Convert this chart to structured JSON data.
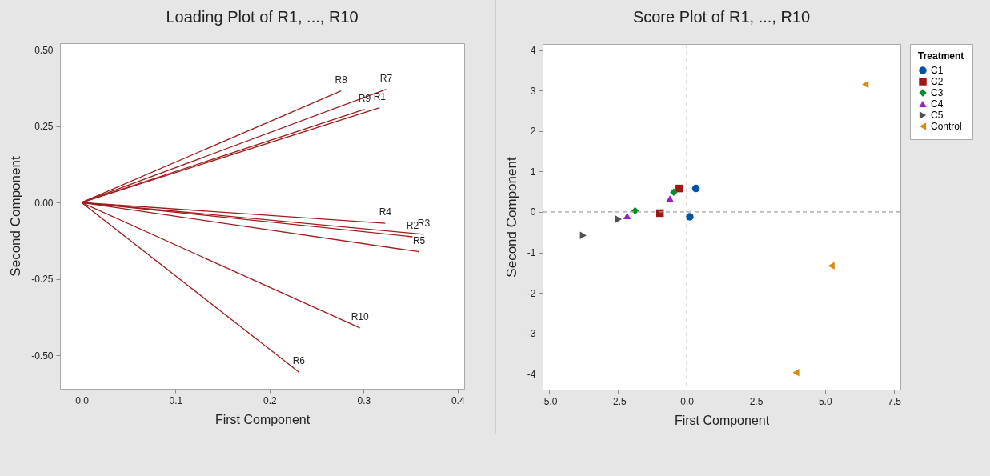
{
  "chart_data": [
    {
      "type": "line",
      "title": "Loading Plot of R1, ..., R10",
      "xlabel": "First Component",
      "ylabel": "Second Component",
      "xlim": [
        -0.023,
        0.407
      ],
      "ylim": [
        -0.609,
        0.521
      ],
      "xticks": [
        {
          "value": 0,
          "label": "0.0"
        },
        0.1,
        0.2,
        0.3,
        0.4
      ],
      "yticks": [
        {
          "value": -0.5,
          "label": "-0.50"
        },
        -0.25,
        {
          "value": 0,
          "label": "0.00"
        },
        0.25,
        {
          "value": 0.5,
          "label": "0.50"
        }
      ],
      "grid": false,
      "legend": false,
      "marker": "none",
      "line_style": "solid",
      "series": [
        {
          "name": "R1",
          "color": "#a01c1c",
          "x": [
            0,
            0.317
          ],
          "values": [
            0,
            0.31
          ]
        },
        {
          "name": "R2",
          "color": "#a01c1c",
          "x": [
            0,
            0.352
          ],
          "values": [
            0,
            -0.112
          ]
        },
        {
          "name": "R3",
          "color": "#a01c1c",
          "x": [
            0,
            0.364
          ],
          "values": [
            0,
            -0.104
          ]
        },
        {
          "name": "R4",
          "color": "#a01c1c",
          "x": [
            0,
            0.323
          ],
          "values": [
            0,
            -0.068
          ]
        },
        {
          "name": "R5",
          "color": "#a01c1c",
          "x": [
            0,
            0.359
          ],
          "values": [
            0,
            -0.161
          ]
        },
        {
          "name": "R6",
          "color": "#a01c1c",
          "x": [
            0,
            0.231
          ],
          "values": [
            0,
            -0.554
          ]
        },
        {
          "name": "R7",
          "color": "#a01c1c",
          "x": [
            0,
            0.324
          ],
          "values": [
            0,
            0.37
          ]
        },
        {
          "name": "R8",
          "color": "#a01c1c",
          "x": [
            0,
            0.276
          ],
          "values": [
            0,
            0.365
          ]
        },
        {
          "name": "R9",
          "color": "#a01c1c",
          "x": [
            0,
            0.301
          ],
          "values": [
            0,
            0.305
          ]
        },
        {
          "name": "R10",
          "color": "#a01c1c",
          "x": [
            0,
            0.296
          ],
          "values": [
            0,
            -0.41
          ]
        }
      ]
    },
    {
      "type": "scatter",
      "title": "Score Plot of R1, ..., R10",
      "xlabel": "First Component",
      "ylabel": "Second Component",
      "legend_title": "Treatment",
      "xlim": [
        -5.22,
        7.73
      ],
      "ylim": [
        -4.39,
        4.15
      ],
      "xticks": [
        {
          "value": -5,
          "label": "-5.0"
        },
        -2.5,
        {
          "value": 0,
          "label": "0.0"
        },
        2.5,
        {
          "value": 5,
          "label": "5.0"
        },
        7.5
      ],
      "yticks": [
        -4,
        -3,
        -2,
        -1,
        0,
        1,
        2,
        3,
        4
      ],
      "grid": false,
      "legend": "top right",
      "ref_lines": [
        {
          "axis": "x",
          "value": 0,
          "color": "#b4b4b4",
          "line_style": "dashed"
        },
        {
          "axis": "y",
          "value": 0,
          "color": "#a0a0a0",
          "line_style": "dashed"
        }
      ],
      "series": [
        {
          "name": "C1",
          "color": "#0054a6",
          "marker": "circle",
          "x": [
            0.33,
            0.11
          ],
          "values": [
            0.58,
            -0.12
          ]
        },
        {
          "name": "C2",
          "color": "#a31515",
          "marker": "square",
          "x": [
            -0.27,
            -0.97
          ],
          "values": [
            0.58,
            -0.03
          ]
        },
        {
          "name": "C3",
          "color": "#0a8a2a",
          "marker": "diamond",
          "x": [
            -0.47,
            -1.87
          ],
          "values": [
            0.49,
            0.03
          ]
        },
        {
          "name": "C4",
          "color": "#9b1ec8",
          "marker": "triangle",
          "x": [
            -0.61,
            -2.16
          ],
          "values": [
            0.33,
            -0.1
          ]
        },
        {
          "name": "C5",
          "color": "#505050",
          "marker": "triangle-right",
          "x": [
            -2.47,
            -3.75
          ],
          "values": [
            -0.18,
            -0.58
          ]
        },
        {
          "name": "Control",
          "color": "#d98c0a",
          "marker": "triangle-left",
          "x": [
            6.46,
            5.23,
            3.95
          ],
          "values": [
            3.15,
            -1.33,
            -3.97
          ]
        }
      ]
    }
  ]
}
